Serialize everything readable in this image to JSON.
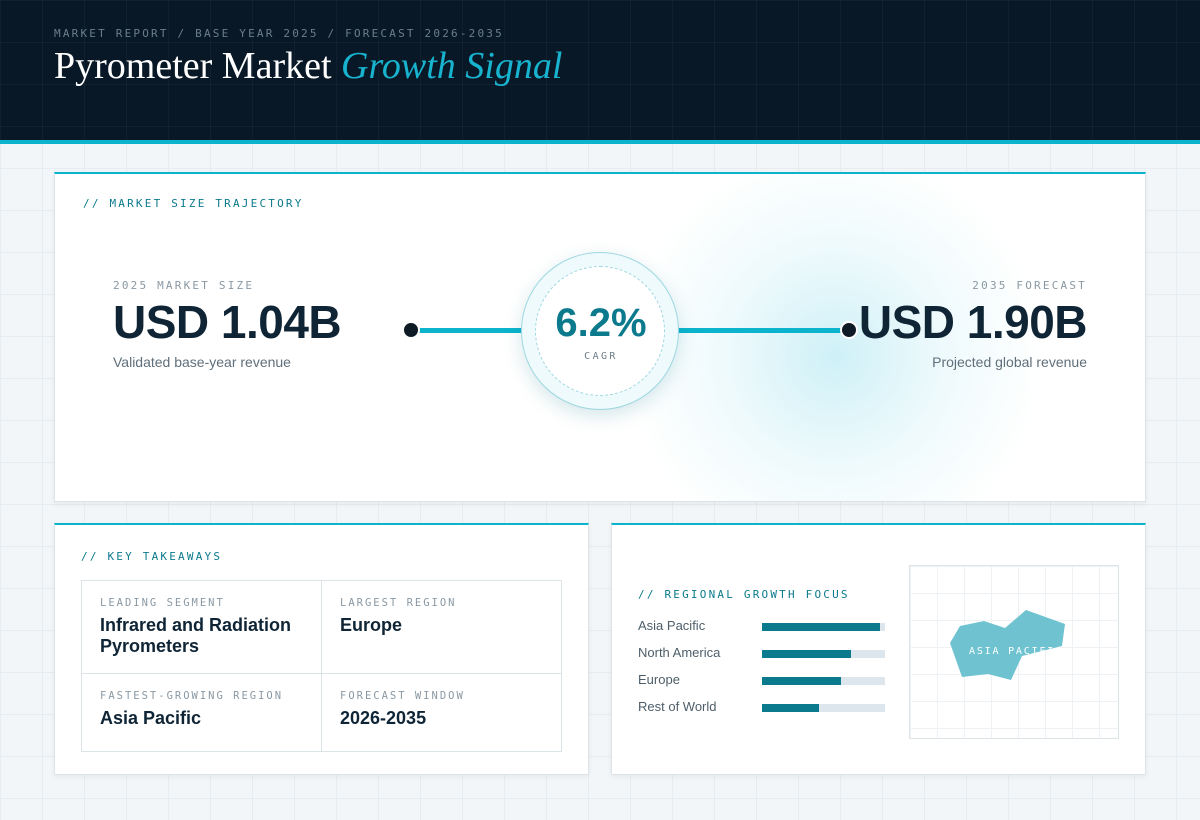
{
  "header": {
    "breadcrumb": "MARKET REPORT / BASE YEAR 2025 / FORECAST 2026-2035",
    "title_main": "Pyrometer Market",
    "title_accent": "Growth Signal"
  },
  "trajectory": {
    "section_label": "// MARKET SIZE TRAJECTORY",
    "base": {
      "caption": "2025 MARKET SIZE",
      "value": "USD 1.04B",
      "subtitle": "Validated base-year revenue"
    },
    "forecast": {
      "caption": "2035 FORECAST",
      "value": "USD 1.90B",
      "subtitle": "Projected global revenue"
    },
    "cagr": {
      "value": "6.2%",
      "label": "CAGR"
    }
  },
  "takeaways": {
    "section_label": "// KEY TAKEAWAYS",
    "items": [
      {
        "caption": "LEADING SEGMENT",
        "value": "Infrared and Radiation Pyrometers"
      },
      {
        "caption": "LARGEST REGION",
        "value": "Europe"
      },
      {
        "caption": "FASTEST-GROWING REGION",
        "value": "Asia Pacific"
      },
      {
        "caption": "FORECAST WINDOW",
        "value": "2026-2035"
      }
    ]
  },
  "regional": {
    "section_label": "// REGIONAL GROWTH FOCUS",
    "rows": [
      {
        "name": "Asia Pacific",
        "level": 0.96
      },
      {
        "name": "North America",
        "level": 0.72
      },
      {
        "name": "Europe",
        "level": 0.64
      },
      {
        "name": "Rest of World",
        "level": 0.46
      }
    ],
    "map_label": "ASIA PACIFIC"
  },
  "colors": {
    "accent": "#0bb4cc",
    "accent_dark": "#0b7a8c",
    "header_bg": "#081826",
    "map_region": "#6fc3d1"
  }
}
